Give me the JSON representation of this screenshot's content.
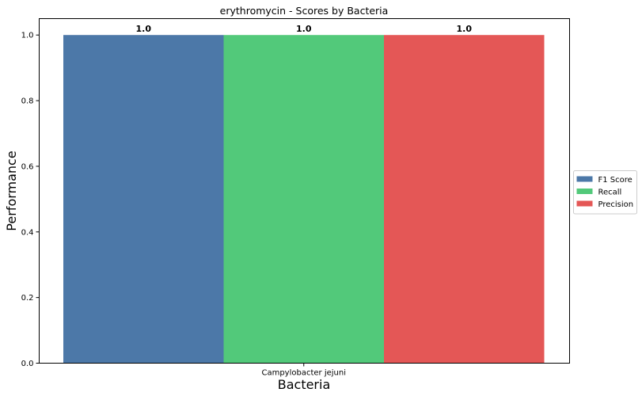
{
  "chart_data": {
    "type": "bar",
    "title": "erythromycin - Scores by Bacteria",
    "xlabel": "Bacteria",
    "ylabel": "Performance",
    "categories": [
      "Campylobacter jejuni"
    ],
    "series": [
      {
        "name": "F1 Score",
        "values": [
          1.0
        ],
        "label": "1.0",
        "color": "#4c78a8"
      },
      {
        "name": "Recall",
        "values": [
          1.0
        ],
        "label": "1.0",
        "color": "#52c97a"
      },
      {
        "name": "Precision",
        "values": [
          1.0
        ],
        "label": "1.0",
        "color": "#e45756"
      }
    ],
    "ylim": [
      0,
      1.05
    ],
    "yticks": [
      {
        "value": 0.0,
        "label": "0.0"
      },
      {
        "value": 0.2,
        "label": "0.2"
      },
      {
        "value": 0.4,
        "label": "0.4"
      },
      {
        "value": 0.6,
        "label": "0.6"
      },
      {
        "value": 0.8,
        "label": "0.8"
      },
      {
        "value": 1.0,
        "label": "1.0"
      }
    ],
    "grid": false,
    "legend_position": "outside-right"
  }
}
